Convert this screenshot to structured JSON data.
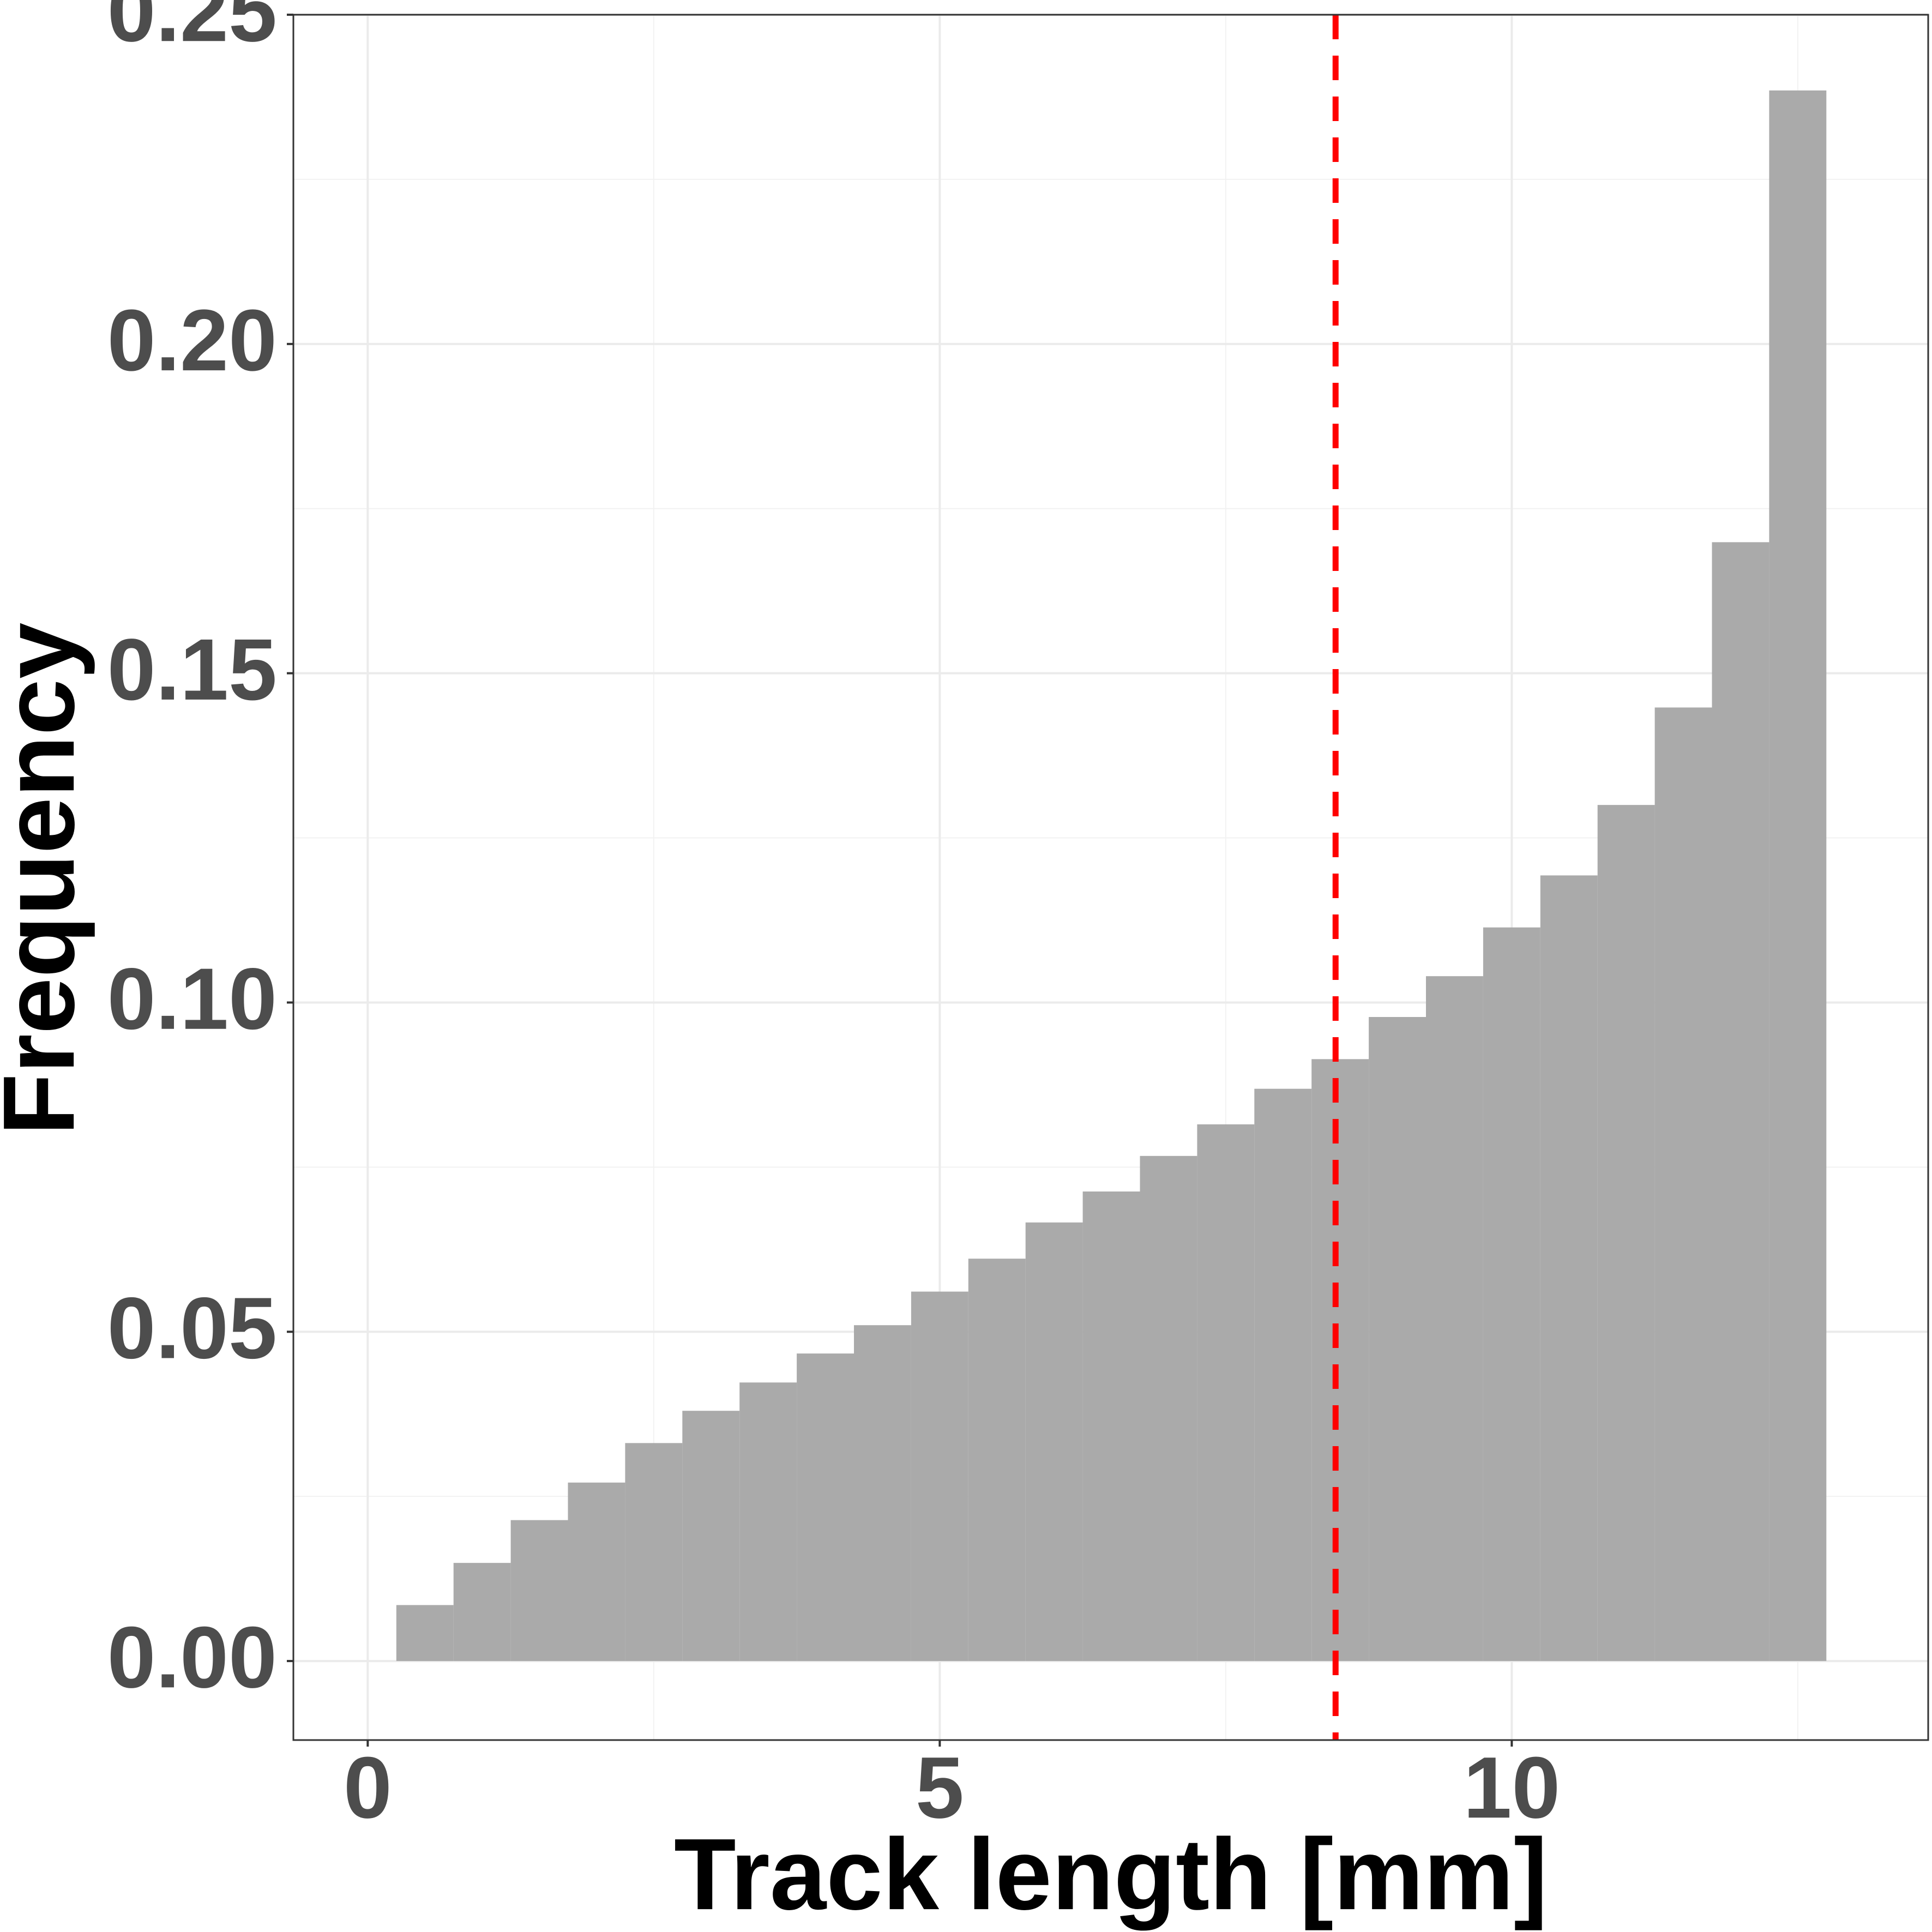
{
  "chart_data": {
    "type": "histogram",
    "x_label": "Track length [mm]",
    "y_label": "Frequency",
    "bins": [
      0.25,
      0.75,
      1.25,
      1.75,
      2.25,
      2.75,
      3.25,
      3.75,
      4.25,
      4.75,
      5.25,
      5.75,
      6.25,
      6.75,
      7.25,
      7.75,
      8.25,
      8.75,
      9.25,
      9.75,
      10.25,
      10.75,
      11.25,
      11.75,
      12.25,
      12.75
    ],
    "values": [
      0.0085,
      0.0149,
      0.0214,
      0.0271,
      0.0331,
      0.038,
      0.0423,
      0.0467,
      0.051,
      0.0561,
      0.0611,
      0.0666,
      0.0713,
      0.0767,
      0.0815,
      0.0869,
      0.0914,
      0.0978,
      0.104,
      0.1114,
      0.1193,
      0.13,
      0.1448,
      0.1699,
      0.2385
    ],
    "color": "#aaaaaa",
    "xlim": [
      -0.65,
      13.64
    ],
    "ylim": [
      -0.012,
      0.25
    ],
    "xticks": [
      0,
      5,
      10
    ],
    "yticks": [
      {
        "value": 0,
        "label": "0.00"
      },
      {
        "value": 0.05,
        "label": "0.05"
      },
      {
        "value": 0.1,
        "label": "0.10"
      },
      {
        "value": 0.15,
        "label": "0.15"
      },
      {
        "value": 0.2,
        "label": "0.20"
      },
      {
        "value": 0.25,
        "label": "0.25"
      }
    ],
    "x_minor_grid": [
      2.5,
      7.5,
      12.5
    ],
    "y_minor_grid": [
      0.025,
      0.075,
      0.125,
      0.175,
      0.225
    ],
    "grid": true,
    "vline": {
      "x": 8.46,
      "color": "#ff0000"
    }
  }
}
